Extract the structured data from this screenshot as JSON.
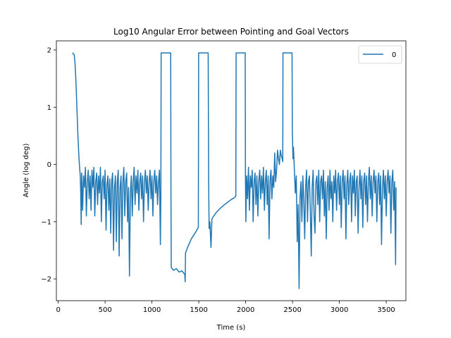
{
  "chart_data": {
    "type": "line",
    "title": "Log10 Angular Error between Pointing and Goal Vectors",
    "xlabel": "Time (s)",
    "ylabel": "Angle (log deg)",
    "xlim": [
      -20,
      3710
    ],
    "ylim": [
      -2.38,
      2.16
    ],
    "xticks": [
      0,
      500,
      1000,
      1500,
      2000,
      2500,
      3000,
      3500
    ],
    "yticks": [
      -2,
      -1,
      0,
      1,
      2
    ],
    "grid": false,
    "legend": {
      "location": "upper-right",
      "entries": [
        "0"
      ]
    },
    "series": [
      {
        "name": "0",
        "color": "#1f77b4",
        "points": [
          [
            150,
            1.95
          ],
          [
            170,
            1.92
          ],
          [
            180,
            1.75
          ],
          [
            190,
            1.4
          ],
          [
            200,
            0.95
          ],
          [
            210,
            0.5
          ],
          [
            220,
            0.15
          ],
          [
            230,
            -0.1
          ],
          [
            235,
            -0.2
          ],
          [
            240,
            -0.5
          ],
          [
            245,
            -1.05
          ],
          [
            250,
            -0.15
          ],
          [
            260,
            -0.8
          ],
          [
            270,
            -0.2
          ],
          [
            280,
            -0.4
          ],
          [
            290,
            -0.05
          ],
          [
            300,
            -0.9
          ],
          [
            310,
            -0.3
          ],
          [
            320,
            -0.1
          ],
          [
            330,
            -0.6
          ],
          [
            340,
            -0.2
          ],
          [
            350,
            -0.8
          ],
          [
            360,
            -0.1
          ],
          [
            370,
            -0.4
          ],
          [
            380,
            -0.05
          ],
          [
            390,
            -0.9
          ],
          [
            400,
            -0.3
          ],
          [
            410,
            -0.15
          ],
          [
            420,
            -0.7
          ],
          [
            430,
            -0.2
          ],
          [
            440,
            -0.5
          ],
          [
            450,
            -0.05
          ],
          [
            460,
            -1.0
          ],
          [
            470,
            -0.3
          ],
          [
            480,
            -0.2
          ],
          [
            490,
            -0.6
          ],
          [
            500,
            -0.1
          ],
          [
            510,
            -1.15
          ],
          [
            520,
            -0.35
          ],
          [
            530,
            -0.2
          ],
          [
            540,
            -0.8
          ],
          [
            550,
            -0.25
          ],
          [
            560,
            -1.2
          ],
          [
            570,
            -0.3
          ],
          [
            580,
            -0.15
          ],
          [
            590,
            -1.5
          ],
          [
            600,
            -0.4
          ],
          [
            610,
            -0.2
          ],
          [
            620,
            -1.35
          ],
          [
            630,
            -0.3
          ],
          [
            640,
            -0.1
          ],
          [
            650,
            -1.6
          ],
          [
            660,
            -0.4
          ],
          [
            670,
            -0.2
          ],
          [
            680,
            -1.3
          ],
          [
            690,
            -0.3
          ],
          [
            700,
            -0.05
          ],
          [
            710,
            -0.9
          ],
          [
            720,
            -0.3
          ],
          [
            730,
            -0.15
          ],
          [
            740,
            -1.0
          ],
          [
            750,
            -0.4
          ],
          [
            760,
            -1.95
          ],
          [
            770,
            -0.5
          ],
          [
            780,
            -0.2
          ],
          [
            790,
            -0.9
          ],
          [
            800,
            -0.3
          ],
          [
            810,
            -0.05
          ],
          [
            820,
            -0.7
          ],
          [
            830,
            -0.2
          ],
          [
            840,
            -0.5
          ],
          [
            850,
            -0.1
          ],
          [
            860,
            -0.8
          ],
          [
            870,
            -0.3
          ],
          [
            880,
            -0.15
          ],
          [
            890,
            -0.6
          ],
          [
            900,
            -0.2
          ],
          [
            910,
            -1.0
          ],
          [
            920,
            -0.3
          ],
          [
            930,
            -0.1
          ],
          [
            940,
            -0.5
          ],
          [
            950,
            -0.2
          ],
          [
            960,
            -0.8
          ],
          [
            970,
            -0.3
          ],
          [
            980,
            -0.1
          ],
          [
            990,
            -0.6
          ],
          [
            1000,
            -0.2
          ],
          [
            1010,
            -0.9
          ],
          [
            1020,
            -0.3
          ],
          [
            1030,
            -0.1
          ],
          [
            1040,
            -0.5
          ],
          [
            1050,
            -0.2
          ],
          [
            1060,
            -0.7
          ],
          [
            1070,
            -0.3
          ],
          [
            1080,
            -0.1
          ],
          [
            1090,
            -1.4
          ],
          [
            1095,
            -0.5
          ],
          [
            1098,
            1.95
          ],
          [
            1200,
            1.95
          ],
          [
            1203,
            -0.6
          ],
          [
            1206,
            -1.8
          ],
          [
            1230,
            -1.85
          ],
          [
            1260,
            -1.82
          ],
          [
            1290,
            -1.88
          ],
          [
            1320,
            -1.86
          ],
          [
            1350,
            -1.92
          ],
          [
            1355,
            -2.05
          ],
          [
            1358,
            -1.55
          ],
          [
            1380,
            -1.45
          ],
          [
            1420,
            -1.3
          ],
          [
            1460,
            -1.2
          ],
          [
            1495,
            -1.1
          ],
          [
            1498,
            1.95
          ],
          [
            1600,
            1.95
          ],
          [
            1605,
            -0.3
          ],
          [
            1610,
            -1.12
          ],
          [
            1618,
            -1.0
          ],
          [
            1630,
            -1.45
          ],
          [
            1640,
            -0.95
          ],
          [
            1680,
            -0.85
          ],
          [
            1720,
            -0.78
          ],
          [
            1760,
            -0.72
          ],
          [
            1800,
            -0.67
          ],
          [
            1840,
            -0.62
          ],
          [
            1880,
            -0.58
          ],
          [
            1895,
            -0.55
          ],
          [
            1898,
            1.95
          ],
          [
            1995,
            1.95
          ],
          [
            1998,
            -0.3
          ],
          [
            2002,
            -1.0
          ],
          [
            2010,
            -0.2
          ],
          [
            2020,
            -0.6
          ],
          [
            2030,
            -0.05
          ],
          [
            2040,
            -0.8
          ],
          [
            2050,
            -0.2
          ],
          [
            2060,
            -0.4
          ],
          [
            2070,
            -0.1
          ],
          [
            2080,
            -1.0
          ],
          [
            2090,
            -0.3
          ],
          [
            2100,
            -0.15
          ],
          [
            2110,
            -0.7
          ],
          [
            2120,
            -0.2
          ],
          [
            2130,
            -0.9
          ],
          [
            2140,
            -0.3
          ],
          [
            2150,
            -0.1
          ],
          [
            2160,
            -0.6
          ],
          [
            2170,
            -0.2
          ],
          [
            2180,
            -0.5
          ],
          [
            2190,
            -0.05
          ],
          [
            2200,
            -0.8
          ],
          [
            2210,
            -0.3
          ],
          [
            2220,
            -0.1
          ],
          [
            2230,
            -0.7
          ],
          [
            2240,
            -0.2
          ],
          [
            2250,
            -1.3
          ],
          [
            2260,
            -0.3
          ],
          [
            2270,
            -0.1
          ],
          [
            2280,
            -0.6
          ],
          [
            2290,
            -0.2
          ],
          [
            2300,
            -0.4
          ],
          [
            2310,
            0.2
          ],
          [
            2320,
            -0.3
          ],
          [
            2330,
            -0.1
          ],
          [
            2340,
            0.25
          ],
          [
            2350,
            0.1
          ],
          [
            2360,
            0.0
          ],
          [
            2370,
            0.25
          ],
          [
            2380,
            0.15
          ],
          [
            2390,
            0.1
          ],
          [
            2396,
            0.05
          ],
          [
            2398,
            1.95
          ],
          [
            2495,
            1.95
          ],
          [
            2498,
            0.6
          ],
          [
            2505,
            0.1
          ],
          [
            2510,
            0.3
          ],
          [
            2520,
            -0.1
          ],
          [
            2530,
            -0.5
          ],
          [
            2540,
            -0.2
          ],
          [
            2550,
            -1.35
          ],
          [
            2560,
            -0.7
          ],
          [
            2570,
            -2.17
          ],
          [
            2580,
            -0.6
          ],
          [
            2590,
            -0.3
          ],
          [
            2600,
            -1.0
          ],
          [
            2610,
            -0.2
          ],
          [
            2620,
            -0.6
          ],
          [
            2630,
            -1.3
          ],
          [
            2640,
            -0.4
          ],
          [
            2650,
            -0.1
          ],
          [
            2660,
            -1.0
          ],
          [
            2670,
            -0.3
          ],
          [
            2680,
            -0.2
          ],
          [
            2690,
            -0.8
          ],
          [
            2700,
            -1.6
          ],
          [
            2710,
            -0.4
          ],
          [
            2720,
            -0.1
          ],
          [
            2730,
            -0.9
          ],
          [
            2740,
            -1.2
          ],
          [
            2750,
            -0.3
          ],
          [
            2760,
            -0.2
          ],
          [
            2770,
            -0.7
          ],
          [
            2780,
            -0.1
          ],
          [
            2790,
            -1.0
          ],
          [
            2800,
            -0.3
          ],
          [
            2810,
            -0.2
          ],
          [
            2820,
            -0.6
          ],
          [
            2830,
            -0.1
          ],
          [
            2840,
            -0.9
          ],
          [
            2850,
            -0.3
          ],
          [
            2860,
            -1.3
          ],
          [
            2870,
            -0.4
          ],
          [
            2880,
            -0.2
          ],
          [
            2890,
            -0.8
          ],
          [
            2900,
            -0.1
          ],
          [
            2910,
            -0.6
          ],
          [
            2920,
            -0.3
          ],
          [
            2930,
            -1.0
          ],
          [
            2940,
            -0.2
          ],
          [
            2950,
            -0.5
          ],
          [
            2960,
            -0.1
          ],
          [
            2970,
            -0.8
          ],
          [
            2980,
            -0.3
          ],
          [
            2990,
            -0.15
          ],
          [
            3000,
            -0.7
          ],
          [
            3010,
            -0.2
          ],
          [
            3020,
            -1.1
          ],
          [
            3030,
            -0.3
          ],
          [
            3040,
            -0.1
          ],
          [
            3050,
            -0.6
          ],
          [
            3060,
            -0.2
          ],
          [
            3070,
            -1.3
          ],
          [
            3080,
            -0.35
          ],
          [
            3090,
            -0.1
          ],
          [
            3100,
            -0.7
          ],
          [
            3110,
            -0.3
          ],
          [
            3120,
            -0.15
          ],
          [
            3130,
            -1.0
          ],
          [
            3140,
            -0.2
          ],
          [
            3150,
            -0.5
          ],
          [
            3160,
            -0.1
          ],
          [
            3170,
            -0.9
          ],
          [
            3180,
            -0.3
          ],
          [
            3190,
            -0.2
          ],
          [
            3200,
            -1.2
          ],
          [
            3210,
            -0.4
          ],
          [
            3220,
            -0.1
          ],
          [
            3230,
            -0.6
          ],
          [
            3240,
            -0.2
          ],
          [
            3250,
            -1.1
          ],
          [
            3260,
            -0.3
          ],
          [
            3270,
            -0.15
          ],
          [
            3280,
            -0.7
          ],
          [
            3290,
            -0.2
          ],
          [
            3300,
            -1.0
          ],
          [
            3310,
            -0.3
          ],
          [
            3320,
            -0.05
          ],
          [
            3330,
            -0.6
          ],
          [
            3340,
            -0.2
          ],
          [
            3350,
            -0.9
          ],
          [
            3360,
            -0.3
          ],
          [
            3370,
            -0.1
          ],
          [
            3380,
            -0.5
          ],
          [
            3390,
            -0.2
          ],
          [
            3400,
            -1.0
          ],
          [
            3410,
            -0.3
          ],
          [
            3420,
            -0.15
          ],
          [
            3430,
            -0.7
          ],
          [
            3440,
            -0.2
          ],
          [
            3450,
            -1.4
          ],
          [
            3460,
            -0.4
          ],
          [
            3470,
            -0.1
          ],
          [
            3480,
            -0.6
          ],
          [
            3490,
            -0.2
          ],
          [
            3500,
            -0.9
          ],
          [
            3510,
            -0.3
          ],
          [
            3520,
            -0.1
          ],
          [
            3530,
            -0.5
          ],
          [
            3540,
            -0.2
          ],
          [
            3550,
            -1.2
          ],
          [
            3560,
            -0.3
          ],
          [
            3570,
            -0.1
          ],
          [
            3580,
            -0.8
          ],
          [
            3590,
            -0.3
          ],
          [
            3600,
            -1.75
          ],
          [
            3605,
            -0.4
          ]
        ]
      }
    ]
  }
}
